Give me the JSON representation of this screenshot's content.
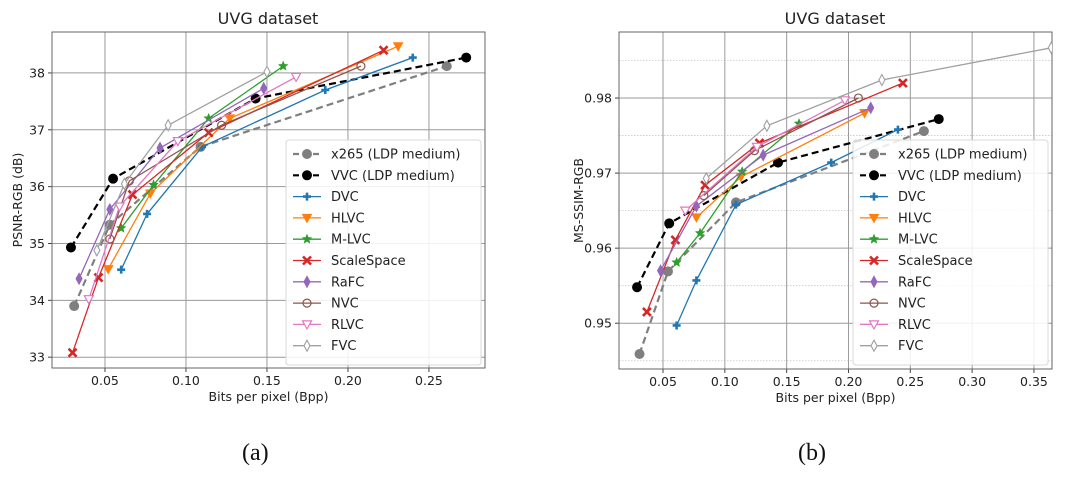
{
  "chart_data": [
    {
      "id": "a",
      "type": "line",
      "title": "UVG dataset",
      "xlabel": "Bits per pixel (Bpp)",
      "ylabel": "PSNR-RGB (dB)",
      "xlim": [
        0.0173,
        0.2846
      ],
      "ylim": [
        32.81,
        38.72
      ],
      "xticks": [
        0.05,
        0.1,
        0.15,
        0.2,
        0.25
      ],
      "xtick_labels": [
        "0.05",
        "0.10",
        "0.15",
        "0.20",
        "0.25"
      ],
      "yticks": [
        33,
        34,
        35,
        36,
        37,
        38
      ],
      "ytick_labels": [
        "33",
        "34",
        "35",
        "36",
        "37",
        "38"
      ],
      "minor_yticks": [],
      "grid": true,
      "legend_position": "center-right",
      "caption": "(a)",
      "series": [
        {
          "name": "x265 (LDP medium)",
          "color": "#7f7f7f",
          "dash": "dashed",
          "marker": "circle",
          "x": [
            0.031,
            0.053,
            0.109,
            0.261
          ],
          "y": [
            33.9,
            35.33,
            36.7,
            38.12
          ]
        },
        {
          "name": "VVC (LDP medium)",
          "color": "#000000",
          "dash": "dashed",
          "marker": "circle",
          "x": [
            0.029,
            0.055,
            0.143,
            0.273
          ],
          "y": [
            34.93,
            36.14,
            37.55,
            38.27
          ]
        },
        {
          "name": "DVC",
          "color": "#1f77b4",
          "dash": "solid",
          "marker": "plus",
          "x": [
            0.06,
            0.076,
            0.11,
            0.186,
            0.24
          ],
          "y": [
            34.54,
            35.52,
            36.7,
            37.7,
            38.27
          ]
        },
        {
          "name": "HLVC",
          "color": "#ff7f0e",
          "dash": "solid",
          "marker": "triangle-down",
          "x": [
            0.052,
            0.078,
            0.127,
            0.231
          ],
          "y": [
            34.55,
            35.88,
            37.2,
            38.47
          ]
        },
        {
          "name": "M-LVC",
          "color": "#2ca02c",
          "dash": "solid",
          "marker": "star",
          "x": [
            0.06,
            0.08,
            0.114,
            0.16
          ],
          "y": [
            35.27,
            36.03,
            37.2,
            38.12
          ]
        },
        {
          "name": "ScaleSpace",
          "color": "#d62728",
          "dash": "solid",
          "marker": "x",
          "x": [
            0.03,
            0.046,
            0.067,
            0.114,
            0.222
          ],
          "y": [
            33.08,
            34.4,
            35.86,
            36.95,
            38.4
          ]
        },
        {
          "name": "RaFC",
          "color": "#9467bd",
          "dash": "solid",
          "marker": "thin-diamond",
          "x": [
            0.034,
            0.053,
            0.084,
            0.148
          ],
          "y": [
            34.38,
            35.6,
            36.68,
            37.73
          ]
        },
        {
          "name": "NVC",
          "color": "#8c564b",
          "dash": "solid",
          "marker": "circle-open",
          "x": [
            0.053,
            0.065,
            0.122,
            0.208
          ],
          "y": [
            35.08,
            36.1,
            37.08,
            38.12
          ]
        },
        {
          "name": "RLVC",
          "color": "#e377c2",
          "dash": "solid",
          "marker": "triangle-down-open",
          "x": [
            0.04,
            0.059,
            0.095,
            0.168
          ],
          "y": [
            34.02,
            35.65,
            36.8,
            37.93
          ]
        },
        {
          "name": "FVC",
          "color": "#a0a0a0",
          "dash": "solid",
          "marker": "thin-diamond-open",
          "x": [
            0.045,
            0.062,
            0.089,
            0.15
          ],
          "y": [
            34.88,
            36.05,
            37.08,
            38.02
          ]
        }
      ]
    },
    {
      "id": "b",
      "type": "line",
      "title": "UVG dataset",
      "xlabel": "Bits per pixel (Bpp)",
      "ylabel": "MS-SSIM-RGB",
      "xlim": [
        0.0144,
        0.3646
      ],
      "ylim": [
        0.9439,
        0.9888
      ],
      "xticks": [
        0.05,
        0.1,
        0.15,
        0.2,
        0.25,
        0.3,
        0.35
      ],
      "xtick_labels": [
        "0.05",
        "0.10",
        "0.15",
        "0.20",
        "0.25",
        "0.30",
        "0.35"
      ],
      "yticks": [
        0.95,
        0.96,
        0.97,
        0.98
      ],
      "ytick_labels": [
        "0.95",
        "0.96",
        "0.97",
        "0.98"
      ],
      "minor_yticks": [
        0.945,
        0.955,
        0.965,
        0.975,
        0.985
      ],
      "grid": true,
      "legend_position": "center-right",
      "caption": "(b)",
      "series": [
        {
          "name": "x265 (LDP medium)",
          "color": "#7f7f7f",
          "dash": "dashed",
          "marker": "circle",
          "x": [
            0.031,
            0.054,
            0.109,
            0.261
          ],
          "y": [
            0.9459,
            0.9569,
            0.9661,
            0.9756
          ]
        },
        {
          "name": "VVC (LDP medium)",
          "color": "#000000",
          "dash": "dashed",
          "marker": "circle",
          "x": [
            0.029,
            0.055,
            0.143,
            0.273
          ],
          "y": [
            0.9548,
            0.9633,
            0.9714,
            0.9772
          ]
        },
        {
          "name": "DVC",
          "color": "#1f77b4",
          "dash": "solid",
          "marker": "plus",
          "x": [
            0.061,
            0.077,
            0.109,
            0.186,
            0.24
          ],
          "y": [
            0.9497,
            0.9557,
            0.9658,
            0.9714,
            0.9758
          ]
        },
        {
          "name": "HLVC",
          "color": "#ff7f0e",
          "dash": "solid",
          "marker": "triangle-down",
          "x": [
            0.077,
            0.113,
            0.213
          ],
          "y": [
            0.9641,
            0.9695,
            0.978
          ]
        },
        {
          "name": "M-LVC",
          "color": "#2ca02c",
          "dash": "solid",
          "marker": "star",
          "x": [
            0.061,
            0.08,
            0.114,
            0.16
          ],
          "y": [
            0.9581,
            0.962,
            0.9702,
            0.9766
          ]
        },
        {
          "name": "ScaleSpace",
          "color": "#d62728",
          "dash": "solid",
          "marker": "x",
          "x": [
            0.037,
            0.06,
            0.084,
            0.128,
            0.244
          ],
          "y": [
            0.9515,
            0.9611,
            0.9684,
            0.974,
            0.982
          ]
        },
        {
          "name": "RaFC",
          "color": "#9467bd",
          "dash": "solid",
          "marker": "thin-diamond",
          "x": [
            0.048,
            0.077,
            0.131,
            0.218
          ],
          "y": [
            0.957,
            0.9656,
            0.9724,
            0.9787
          ]
        },
        {
          "name": "NVC",
          "color": "#8c564b",
          "dash": "solid",
          "marker": "circle-open",
          "x": [
            0.083,
            0.124,
            0.208
          ],
          "y": [
            0.967,
            0.973,
            0.98
          ]
        },
        {
          "name": "RLVC",
          "color": "#e377c2",
          "dash": "solid",
          "marker": "triangle-down-open",
          "x": [
            0.068,
            0.126,
            0.197
          ],
          "y": [
            0.965,
            0.9735,
            0.9797
          ]
        },
        {
          "name": "FVC",
          "color": "#a0a0a0",
          "dash": "solid",
          "marker": "thin-diamond-open",
          "x": [
            0.085,
            0.134,
            0.227,
            0.364
          ],
          "y": [
            0.9693,
            0.9763,
            0.9824,
            0.9867
          ]
        }
      ]
    }
  ]
}
